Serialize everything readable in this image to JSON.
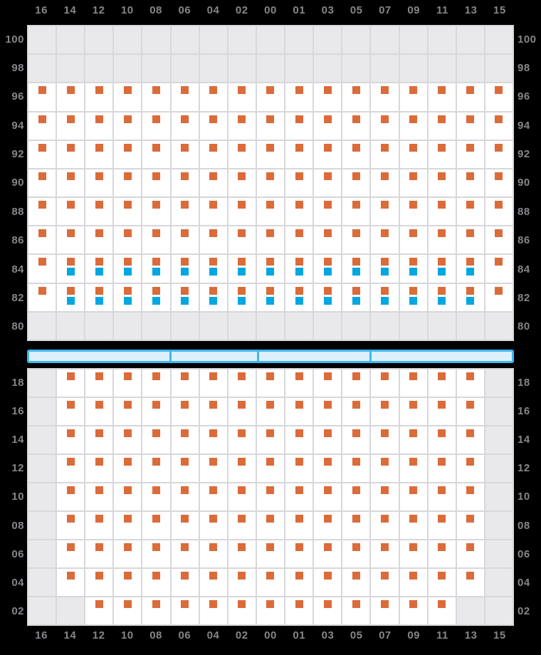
{
  "palette": {
    "background": "#000000",
    "grid_line": "#D8D8DC",
    "cell_white": "#FFFFFF",
    "cell_gray": "#E9E9EB",
    "marker_orange": "#DC6B3A",
    "marker_blue": "#00A7E1",
    "hatch_border": "#3FB8EF",
    "hatch_fill": "#DDF0FC",
    "label_gray": "#86868A"
  },
  "columns": [
    "16",
    "14",
    "12",
    "10",
    "08",
    "06",
    "04",
    "02",
    "00",
    "01",
    "03",
    "05",
    "07",
    "09",
    "11",
    "13",
    "15"
  ],
  "cell_legend": {
    ".": "empty-slot",
    "O": "orange-marker",
    "B": "orange-and-blue-markers"
  },
  "deck_panel": {
    "rows": [
      {
        "label": "100",
        "cells": "................."
      },
      {
        "label": "98",
        "cells": "................."
      },
      {
        "label": "96",
        "cells": "OOOOOOOOOOOOOOOOO"
      },
      {
        "label": "94",
        "cells": "OOOOOOOOOOOOOOOOO"
      },
      {
        "label": "92",
        "cells": "OOOOOOOOOOOOOOOOO"
      },
      {
        "label": "90",
        "cells": "OOOOOOOOOOOOOOOOO"
      },
      {
        "label": "88",
        "cells": "OOOOOOOOOOOOOOOOO"
      },
      {
        "label": "86",
        "cells": "OOOOOOOOOOOOOOOOO"
      },
      {
        "label": "84",
        "cells": "OBBBBBBBBBBBBBBBO"
      },
      {
        "label": "82",
        "cells": "OBBBBBBBBBBBBBBBO"
      },
      {
        "label": "80",
        "cells": "................."
      }
    ]
  },
  "hatch_bar": {
    "segments": [
      29.4,
      18.0,
      23.2,
      29.4
    ]
  },
  "hold_panel": {
    "rows": [
      {
        "label": "18",
        "cells": ".OOOOOOOOOOOOOOO."
      },
      {
        "label": "16",
        "cells": ".OOOOOOOOOOOOOOO."
      },
      {
        "label": "14",
        "cells": ".OOOOOOOOOOOOOOO."
      },
      {
        "label": "12",
        "cells": ".OOOOOOOOOOOOOOO."
      },
      {
        "label": "10",
        "cells": ".OOOOOOOOOOOOOOO."
      },
      {
        "label": "08",
        "cells": ".OOOOOOOOOOOOOOO."
      },
      {
        "label": "06",
        "cells": ".OOOOOOOOOOOOOOO."
      },
      {
        "label": "04",
        "cells": ".OOOOOOOOOOOOOOO."
      },
      {
        "label": "02",
        "cells": "..OOOOOOOOOOOOO.."
      }
    ]
  }
}
